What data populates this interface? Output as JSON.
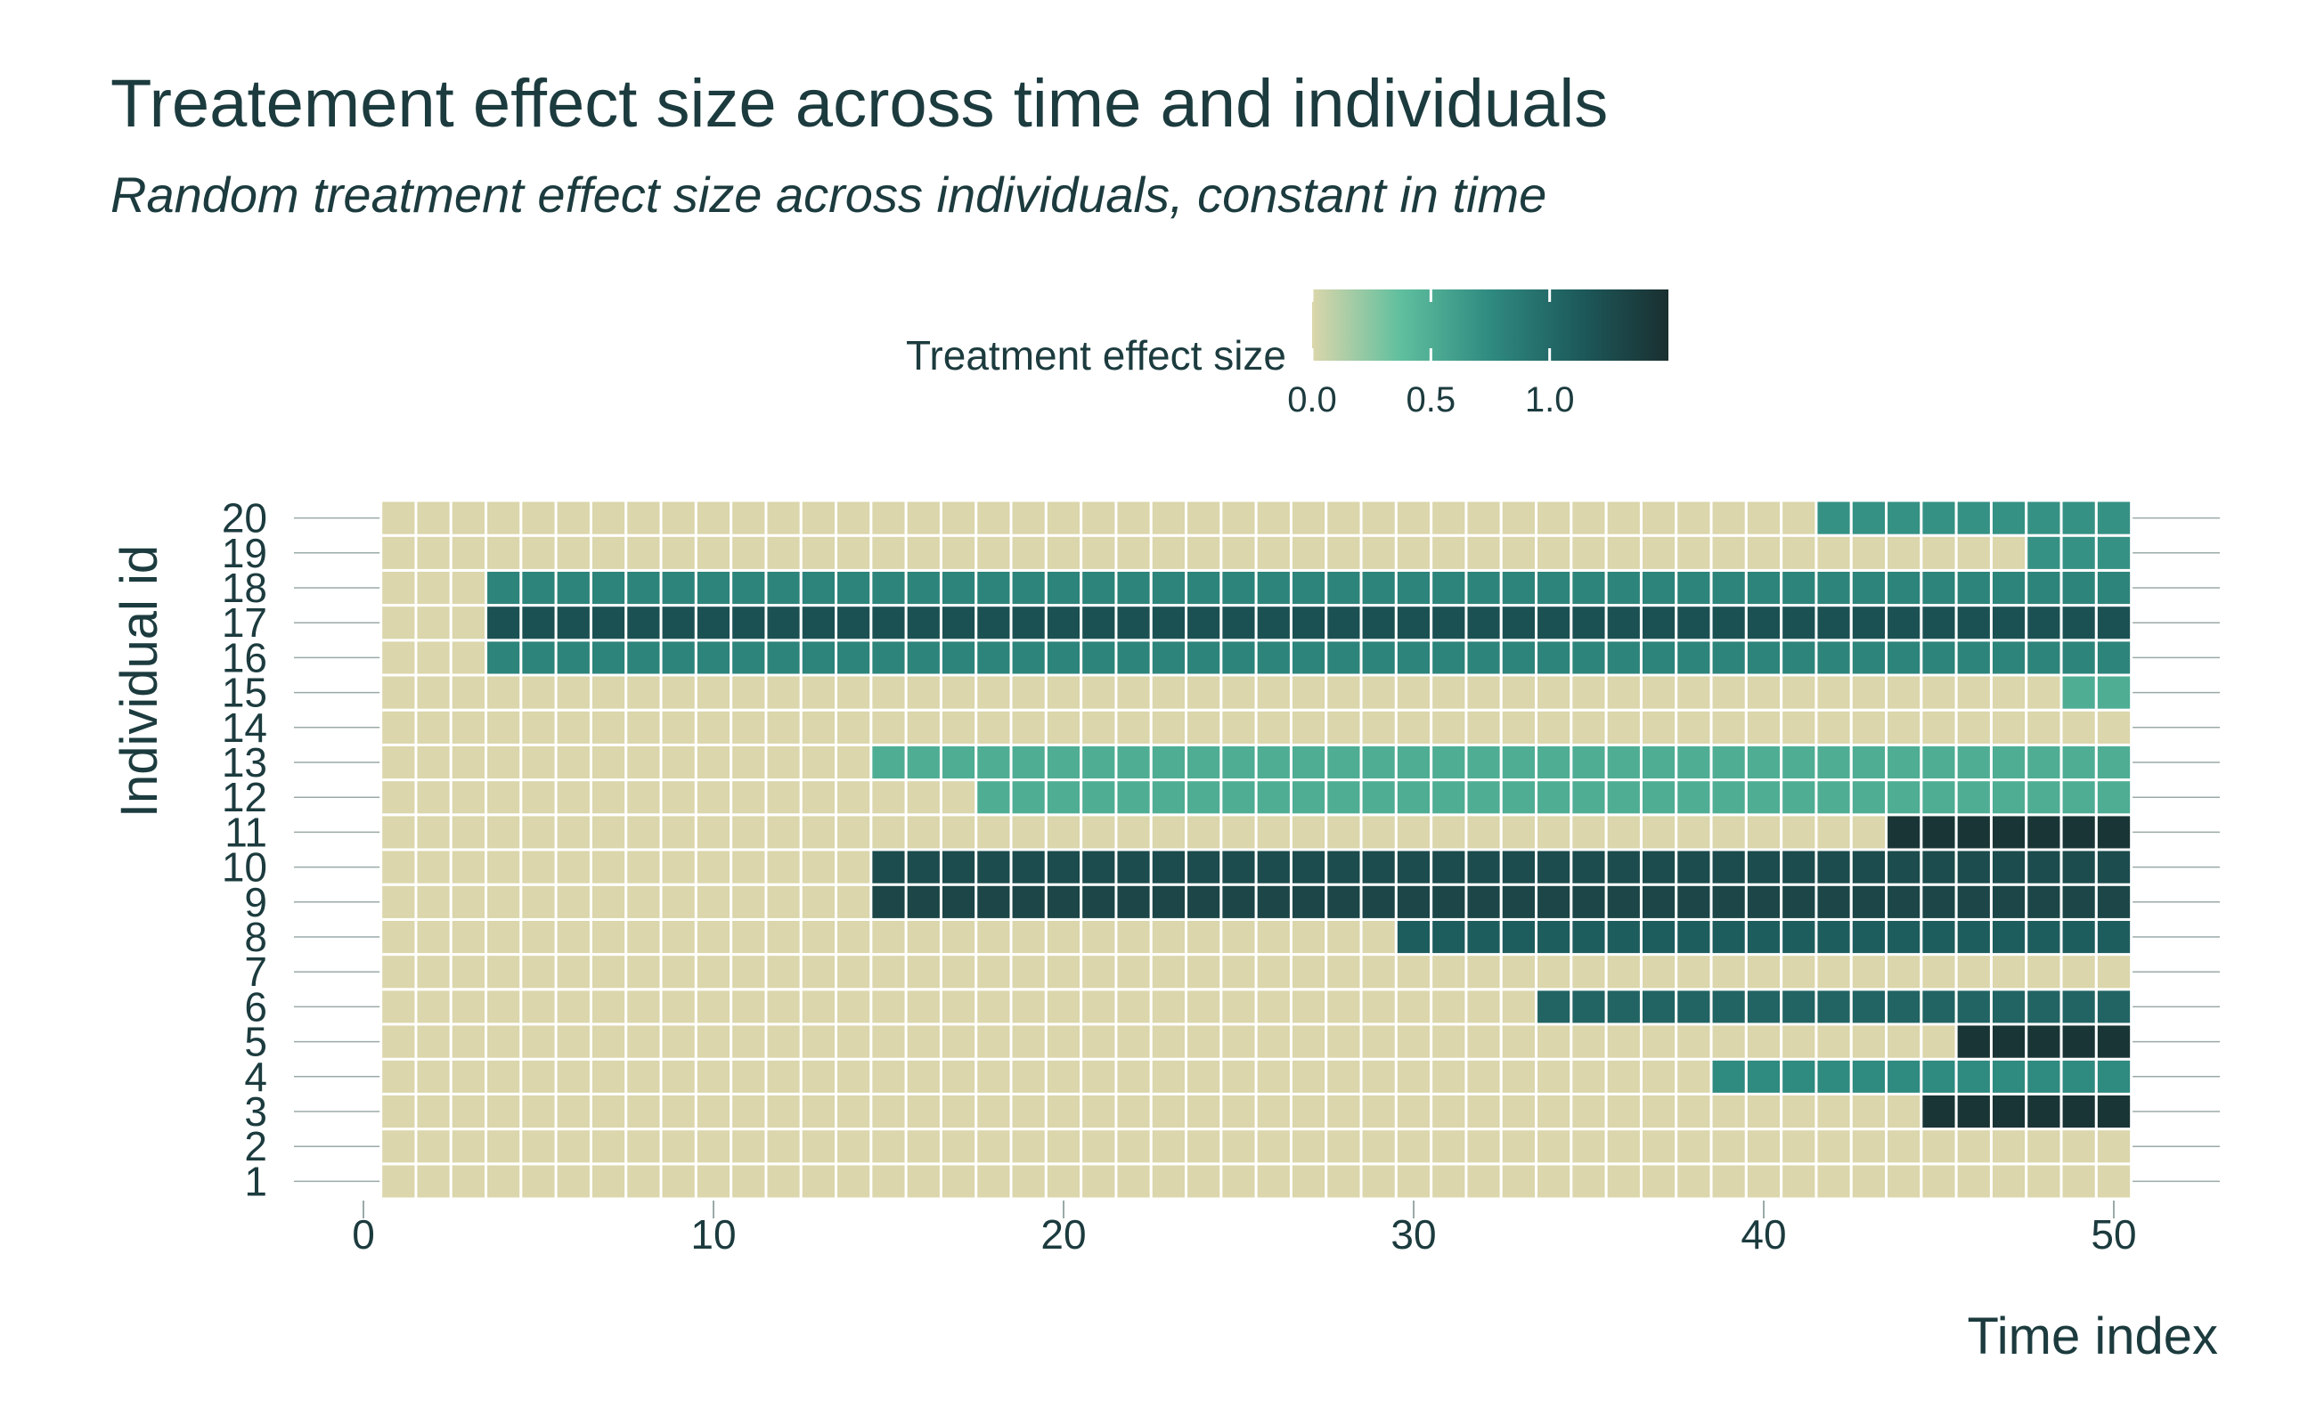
{
  "chart_data": {
    "type": "heatmap",
    "title": "Treatement effect size across time and individuals",
    "subtitle": "Random treatment effect size across individuals, constant in time",
    "xlabel": "Time index",
    "ylabel": "Individual id",
    "x_ticks": [
      0,
      10,
      20,
      30,
      40,
      50
    ],
    "y_ticks": [
      1,
      2,
      3,
      4,
      5,
      6,
      7,
      8,
      9,
      10,
      11,
      12,
      13,
      14,
      15,
      16,
      17,
      18,
      19,
      20
    ],
    "x_range": [
      1,
      50
    ],
    "y_range": [
      1,
      20
    ],
    "legend": {
      "title": "Treatment effect size",
      "position": "top",
      "ticks": [
        "0.0",
        "0.5",
        "1.0"
      ],
      "tick_values": [
        0,
        0.5,
        1.0
      ],
      "range": [
        0,
        1.5
      ],
      "colors": [
        "#dbd6ab",
        "#5fbf9e",
        "#2f8a80",
        "#1d5a5c",
        "#1a2f30"
      ]
    },
    "default_value": 0,
    "treatments": [
      {
        "id": 20,
        "start": 42,
        "values": [
          0.7,
          0.7,
          0.7,
          0.7,
          0.7,
          0.7,
          0.7,
          0.7,
          0.7
        ]
      },
      {
        "id": 19,
        "start": 48,
        "values": [
          0.7,
          0.7,
          0.7
        ]
      },
      {
        "id": 18,
        "start": 4,
        "values": [
          0.8,
          0.8,
          0.8,
          0.8,
          0.8,
          0.8,
          0.8,
          0.8,
          0.8,
          0.8,
          0.8,
          0.8,
          0.8,
          0.8,
          0.8,
          0.8,
          0.8,
          0.8,
          0.8,
          0.8,
          0.8,
          0.8,
          0.8,
          0.8,
          0.8,
          0.8,
          0.8,
          0.8,
          0.8,
          0.8,
          0.8,
          0.8,
          0.8,
          0.8,
          0.8,
          0.8,
          0.8,
          0.8,
          0.8,
          0.8,
          0.8,
          0.8,
          0.8,
          0.8,
          0.8,
          0.8,
          0.8
        ]
      },
      {
        "id": 17,
        "start": 4,
        "values": [
          1.2,
          1.2,
          1.2,
          1.2,
          1.2,
          1.2,
          1.2,
          1.2,
          1.2,
          1.2,
          1.2,
          1.2,
          1.2,
          1.2,
          1.2,
          1.2,
          1.2,
          1.2,
          1.2,
          1.2,
          1.2,
          1.2,
          1.2,
          1.2,
          1.2,
          1.2,
          1.2,
          1.2,
          1.2,
          1.2,
          1.2,
          1.2,
          1.2,
          1.2,
          1.2,
          1.2,
          1.2,
          1.2,
          1.2,
          1.2,
          1.2,
          1.2,
          1.2,
          1.2,
          1.2,
          1.2,
          1.2
        ]
      },
      {
        "id": 16,
        "start": 4,
        "values": [
          0.8,
          0.8,
          0.8,
          0.8,
          0.8,
          0.8,
          0.8,
          0.8,
          0.8,
          0.8,
          0.8,
          0.8,
          0.8,
          0.8,
          0.8,
          0.8,
          0.8,
          0.8,
          0.8,
          0.8,
          0.8,
          0.8,
          0.8,
          0.8,
          0.8,
          0.8,
          0.8,
          0.8,
          0.8,
          0.8,
          0.8,
          0.8,
          0.8,
          0.8,
          0.8,
          0.8,
          0.8,
          0.8,
          0.8,
          0.8,
          0.8,
          0.8,
          0.8,
          0.8,
          0.8,
          0.8,
          0.8
        ]
      },
      {
        "id": 15,
        "start": 49,
        "values": [
          0.5,
          0.5
        ]
      },
      {
        "id": 13,
        "start": 15,
        "values": [
          0.5,
          0.5,
          0.5,
          0.5,
          0.5,
          0.5,
          0.5,
          0.5,
          0.5,
          0.5,
          0.5,
          0.5,
          0.5,
          0.5,
          0.5,
          0.5,
          0.5,
          0.5,
          0.5,
          0.5,
          0.5,
          0.5,
          0.5,
          0.5,
          0.5,
          0.5,
          0.5,
          0.5,
          0.5,
          0.5,
          0.5,
          0.5,
          0.5,
          0.5,
          0.5,
          0.5
        ]
      },
      {
        "id": 12,
        "start": 18,
        "values": [
          0.5,
          0.5,
          0.5,
          0.5,
          0.5,
          0.5,
          0.5,
          0.5,
          0.5,
          0.5,
          0.5,
          0.5,
          0.5,
          0.5,
          0.5,
          0.5,
          0.5,
          0.5,
          0.5,
          0.5,
          0.5,
          0.5,
          0.5,
          0.5,
          0.5,
          0.5,
          0.5,
          0.5,
          0.5,
          0.5,
          0.5,
          0.5,
          0.5
        ]
      },
      {
        "id": 11,
        "start": 44,
        "values": [
          1.45,
          1.45,
          1.45,
          1.45,
          1.45,
          1.45,
          1.45
        ]
      },
      {
        "id": 10,
        "start": 15,
        "values": [
          1.25,
          1.25,
          1.25,
          1.25,
          1.25,
          1.25,
          1.25,
          1.25,
          1.25,
          1.25,
          1.25,
          1.25,
          1.25,
          1.25,
          1.25,
          1.25,
          1.25,
          1.25,
          1.25,
          1.25,
          1.25,
          1.25,
          1.25,
          1.25,
          1.25,
          1.25,
          1.25,
          1.25,
          1.25,
          1.25,
          1.25,
          1.25,
          1.25,
          1.25,
          1.25,
          1.25
        ]
      },
      {
        "id": 9,
        "start": 15,
        "values": [
          1.3,
          1.3,
          1.3,
          1.3,
          1.3,
          1.3,
          1.3,
          1.3,
          1.3,
          1.3,
          1.3,
          1.3,
          1.3,
          1.3,
          1.3,
          1.3,
          1.3,
          1.3,
          1.3,
          1.3,
          1.3,
          1.3,
          1.3,
          1.3,
          1.3,
          1.3,
          1.3,
          1.3,
          1.3,
          1.3,
          1.3,
          1.3,
          1.3,
          1.3,
          1.3,
          1.3
        ]
      },
      {
        "id": 8,
        "start": 30,
        "values": [
          1.1,
          1.1,
          1.1,
          1.1,
          1.1,
          1.1,
          1.1,
          1.1,
          1.1,
          1.1,
          1.1,
          1.1,
          1.1,
          1.1,
          1.1,
          1.1,
          1.1,
          1.1,
          1.1,
          1.1,
          1.1
        ]
      },
      {
        "id": 6,
        "start": 34,
        "values": [
          1.05,
          1.05,
          1.05,
          1.05,
          1.05,
          1.05,
          1.05,
          1.05,
          1.05,
          1.05,
          1.05,
          1.05,
          1.05,
          1.05,
          1.05,
          1.05,
          1.05
        ]
      },
      {
        "id": 5,
        "start": 46,
        "values": [
          1.45,
          1.45,
          1.45,
          1.45,
          1.45
        ]
      },
      {
        "id": 4,
        "start": 39,
        "values": [
          0.75,
          0.75,
          0.75,
          0.75,
          0.75,
          0.75,
          0.75,
          0.75,
          0.75,
          0.75,
          0.75,
          0.75
        ]
      },
      {
        "id": 3,
        "start": 45,
        "values": [
          1.45,
          1.45,
          1.45,
          1.45,
          1.45,
          1.45
        ]
      }
    ]
  }
}
